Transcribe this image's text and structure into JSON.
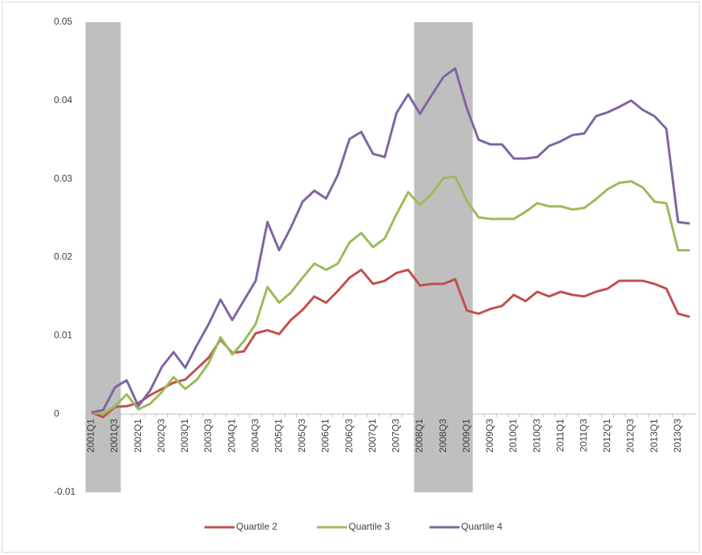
{
  "chart_data": {
    "type": "line",
    "categories": [
      "2001Q1",
      null,
      "2001Q3",
      null,
      "2002Q1",
      null,
      "2002Q3",
      null,
      "2003Q1",
      null,
      "2003Q3",
      null,
      "2004Q1",
      null,
      "2004Q3",
      null,
      "2005Q1",
      null,
      "2005Q3",
      null,
      "2006Q1",
      null,
      "2006Q3",
      null,
      "2007Q1",
      null,
      "2007Q3",
      null,
      "2008Q1",
      null,
      "2008Q3",
      null,
      "2009Q1",
      null,
      "2009Q3",
      null,
      "2010Q1",
      null,
      "2010Q3",
      null,
      "2011Q1",
      null,
      "2011Q3",
      null,
      "2012Q1",
      null,
      "2012Q3",
      null,
      "2013Q1",
      null,
      "2013Q3",
      null
    ],
    "series": [
      {
        "name": "Quartile 2",
        "color": "#c0504d",
        "values": [
          0.0002,
          -0.0004,
          0.0009,
          0.001,
          0.0014,
          0.0024,
          0.0032,
          0.004,
          0.0044,
          0.0058,
          0.0072,
          0.0095,
          0.0078,
          0.008,
          0.0103,
          0.0107,
          0.0102,
          0.012,
          0.0133,
          0.015,
          0.0142,
          0.0157,
          0.0174,
          0.0184,
          0.0166,
          0.017,
          0.018,
          0.0184,
          0.0164,
          0.0166,
          0.0166,
          0.0172,
          0.0132,
          0.0128,
          0.0134,
          0.0138,
          0.0152,
          0.0144,
          0.0156,
          0.015,
          0.0156,
          0.0152,
          0.015,
          0.0156,
          0.016,
          0.017,
          0.017,
          0.017,
          0.0166,
          0.016,
          0.0128,
          0.0124
        ]
      },
      {
        "name": "Quartile 3",
        "color": "#9bbb59",
        "values": [
          0.0002,
          0.0,
          0.001,
          0.0025,
          0.0006,
          0.0013,
          0.0028,
          0.0047,
          0.0032,
          0.0044,
          0.0065,
          0.0098,
          0.0076,
          0.0093,
          0.0115,
          0.0162,
          0.0142,
          0.0155,
          0.0174,
          0.0192,
          0.0184,
          0.0192,
          0.0219,
          0.0231,
          0.0213,
          0.0224,
          0.0255,
          0.0283,
          0.0267,
          0.0281,
          0.0301,
          0.0303,
          0.0272,
          0.0251,
          0.0249,
          0.0249,
          0.0249,
          0.0258,
          0.0269,
          0.0265,
          0.0265,
          0.0261,
          0.0263,
          0.0274,
          0.0287,
          0.0295,
          0.0297,
          0.0289,
          0.0271,
          0.0269,
          0.0209,
          0.0209
        ]
      },
      {
        "name": "Quartile 4",
        "color": "#8064a2",
        "values": [
          0.0002,
          0.0005,
          0.0034,
          0.0043,
          0.001,
          0.003,
          0.006,
          0.0079,
          0.0059,
          0.0088,
          0.0115,
          0.0146,
          0.012,
          0.0145,
          0.017,
          0.0245,
          0.0209,
          0.0238,
          0.0271,
          0.0285,
          0.0275,
          0.0305,
          0.0351,
          0.036,
          0.0332,
          0.0328,
          0.0384,
          0.0408,
          0.0383,
          0.0407,
          0.043,
          0.0441,
          0.039,
          0.035,
          0.0344,
          0.0344,
          0.0326,
          0.0326,
          0.0328,
          0.0342,
          0.0348,
          0.0356,
          0.0358,
          0.038,
          0.0385,
          0.0392,
          0.04,
          0.0388,
          0.038,
          0.0364,
          0.0245,
          0.0243
        ]
      }
    ],
    "shaded_ranges": [
      [
        0,
        2
      ],
      [
        28,
        32
      ]
    ],
    "shade_color": "#bfbfbf",
    "ylim": [
      -0.01,
      0.05
    ],
    "yticks": [
      -0.01,
      0,
      0.01,
      0.02,
      0.03,
      0.04,
      0.05
    ],
    "grid": false,
    "legend": "bottom"
  }
}
